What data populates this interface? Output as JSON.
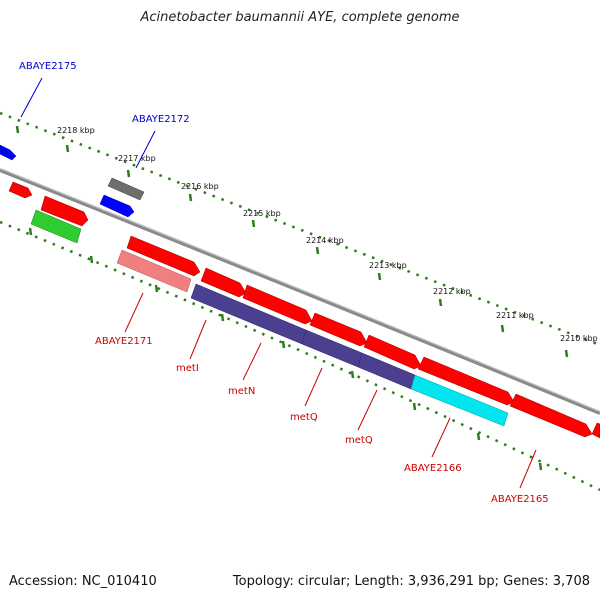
{
  "title": "Acinetobacter baumannii AYE, complete genome",
  "accession": "Accession: NC_010410",
  "topology": "Topology: circular; Length: 3,936,291 bp; Genes: 3,708",
  "colors": {
    "backbone": "#8a8a8a",
    "tick": "#2e7d19",
    "forward_gene": "#ff0000",
    "pseudo_gene": "#f08080",
    "met_gene": "#4b3f8f",
    "cyan_gene": "#00e5ee",
    "blue_gene": "#0000ff",
    "gray_gene": "#6e6e6e",
    "green_gene": "#2ecc2e",
    "label_red": "#cc0000",
    "label_blue": "#0000cc"
  },
  "ticks": [
    "2218 kbp",
    "2217 kbp",
    "2216 kbp",
    "2215 kbp",
    "2214 kbp",
    "2213 kbp",
    "2212 kbp",
    "2211 kbp",
    "2210 kbp"
  ],
  "gene_labels": [
    {
      "text": "ABAYE2175",
      "color": "blue"
    },
    {
      "text": "ABAYE2172",
      "color": "blue"
    },
    {
      "text": "ABAYE2171",
      "color": "red"
    },
    {
      "text": "metI",
      "color": "red"
    },
    {
      "text": "metN",
      "color": "red"
    },
    {
      "text": "metQ",
      "color": "red"
    },
    {
      "text": "metQ",
      "color": "red"
    },
    {
      "text": "ABAYE2166",
      "color": "red"
    },
    {
      "text": "ABAYE2165",
      "color": "red"
    }
  ]
}
